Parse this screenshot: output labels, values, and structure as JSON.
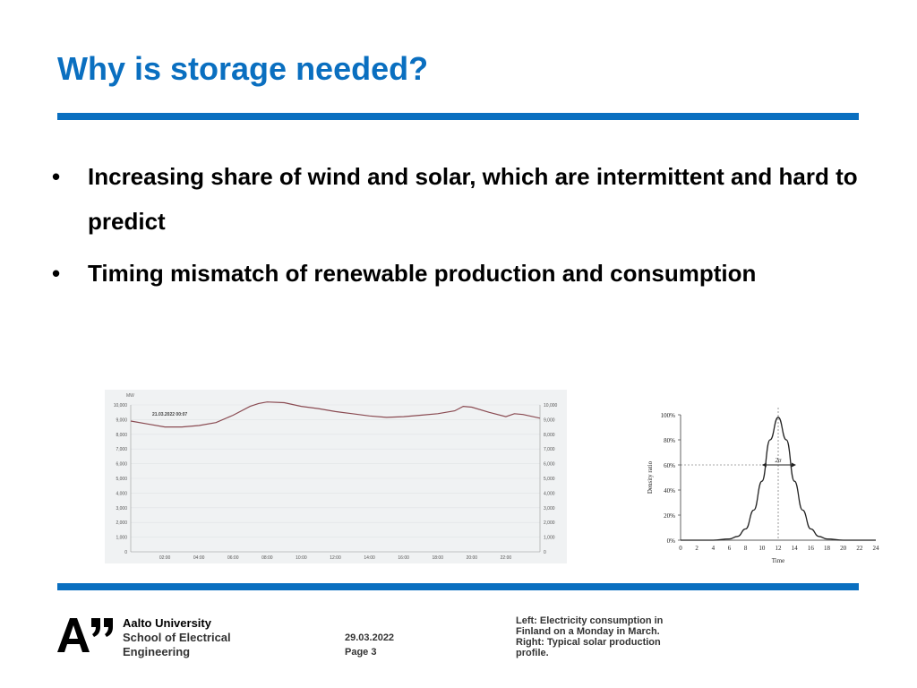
{
  "slide": {
    "title": "Why is storage needed?",
    "bullets": [
      "Increasing share of wind and solar, which are intermittent and hard to predict",
      "Timing mismatch of renewable production and consumption"
    ]
  },
  "footer": {
    "university": "Aalto University",
    "school_line1": "School of Electrical",
    "school_line2": "Engineering",
    "date": "29.03.2022",
    "page": "Page 3",
    "caption_lines": [
      "Left: Electricity consumption in",
      "Finland on a Monday in March.",
      "Right: Typical solar production",
      "profile."
    ]
  },
  "colors": {
    "accent": "#0a6fc0",
    "consumption_line": "#8a4b52"
  },
  "chart_data": [
    {
      "type": "line",
      "title": "",
      "ylabel": "MW",
      "annotation": "21.03.2022 00:07",
      "x_ticks": [
        "02:00",
        "04:00",
        "06:00",
        "08:00",
        "10:00",
        "12:00",
        "14:00",
        "16:00",
        "18:00",
        "20:00",
        "22:00"
      ],
      "y_ticks": [
        "0",
        "1,000",
        "2,000",
        "3,000",
        "4,000",
        "5,000",
        "6,000",
        "7,000",
        "8,000",
        "9,000",
        "10,000"
      ],
      "ylim": [
        0,
        10000
      ],
      "xlim": [
        0,
        24
      ],
      "series": [
        {
          "x": [
            0,
            1,
            2,
            3,
            4,
            5,
            6,
            7,
            7.5,
            8,
            9,
            10,
            11,
            12,
            13,
            14,
            15,
            16,
            17,
            18,
            19,
            19.5,
            20,
            21,
            22,
            22.5,
            23,
            24
          ],
          "y": [
            8900,
            8700,
            8500,
            8500,
            8600,
            8800,
            9300,
            9900,
            10100,
            10200,
            10150,
            9900,
            9750,
            9550,
            9400,
            9250,
            9150,
            9200,
            9300,
            9400,
            9600,
            9900,
            9850,
            9500,
            9200,
            9400,
            9350,
            9100
          ]
        }
      ]
    },
    {
      "type": "line",
      "title": "",
      "xlabel": "Time",
      "ylabel": "Density ratio",
      "x_ticks": [
        "0",
        "2",
        "4",
        "6",
        "8",
        "10",
        "12",
        "14",
        "16",
        "18",
        "20",
        "22",
        "24"
      ],
      "y_ticks": [
        "0%",
        "20%",
        "40%",
        "60%",
        "80%",
        "100%"
      ],
      "xlim": [
        0,
        24
      ],
      "ylim": [
        0,
        100
      ],
      "annotation": "2σ",
      "marker_y": 60,
      "peak_x": 12,
      "series": [
        {
          "x": [
            0,
            2,
            4,
            6,
            7,
            8,
            9,
            10,
            11,
            12,
            13,
            14,
            15,
            16,
            17,
            18,
            20,
            22,
            24
          ],
          "y": [
            0,
            0,
            0,
            1,
            3,
            9,
            24,
            47,
            80,
            98,
            80,
            47,
            24,
            9,
            3,
            1,
            0,
            0,
            0
          ]
        }
      ]
    }
  ]
}
